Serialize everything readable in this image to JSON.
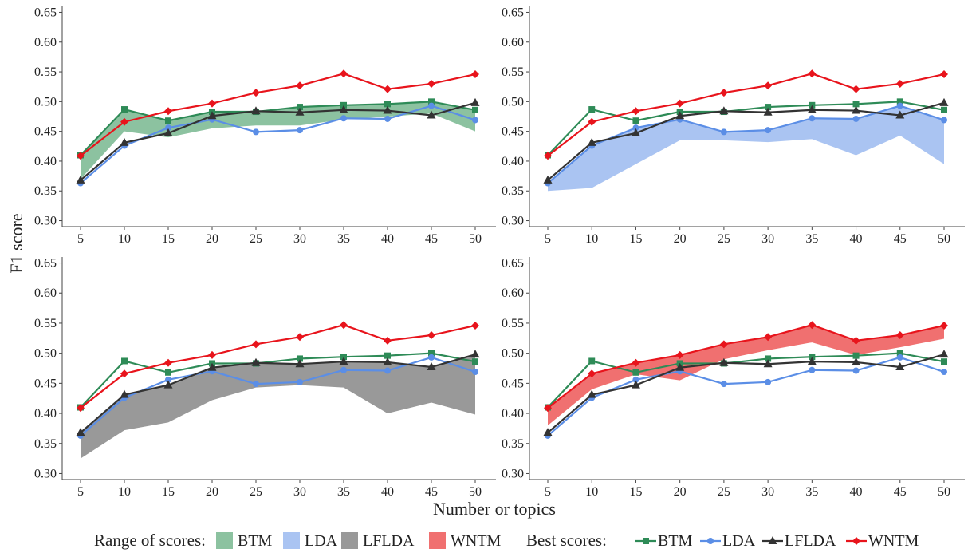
{
  "figure": {
    "ylabel": "F1 score",
    "xlabel": "Number or topics",
    "legend": {
      "range_title": "Range of scores:",
      "best_title": "Best scores:",
      "items": [
        "BTM",
        "LDA",
        "LFLDA",
        "WNTM"
      ]
    },
    "colors": {
      "BTM": "#2e8b57",
      "LDA": "#5b8ee6",
      "LFLDA": "#333333",
      "WNTM": "#e8141c",
      "BTM_band": "#8cc2a0",
      "LDA_band": "#aac4f2",
      "LFLDA_band": "#999999",
      "WNTM_band": "#f07070"
    },
    "markers": {
      "BTM": "square",
      "LDA": "circle",
      "LFLDA": "triangle",
      "WNTM": "diamond"
    }
  },
  "chart_data": [
    {
      "type": "line",
      "panel": "top-left",
      "band_series": "BTM",
      "x": [
        5,
        10,
        15,
        20,
        25,
        30,
        35,
        40,
        45,
        50
      ],
      "xticks": [
        "5",
        "10",
        "15",
        "20",
        "25",
        "30",
        "35",
        "40",
        "45",
        "50"
      ],
      "yticks": [
        "0.30",
        "0.35",
        "0.40",
        "0.45",
        "0.50",
        "0.55",
        "0.60",
        "0.65"
      ],
      "ylim": [
        0.29,
        0.66
      ],
      "band": {
        "upper": [
          0.41,
          0.487,
          0.468,
          0.483,
          0.483,
          0.491,
          0.494,
          0.496,
          0.5,
          0.486
        ],
        "lower": [
          0.37,
          0.45,
          0.44,
          0.455,
          0.46,
          0.46,
          0.47,
          0.475,
          0.48,
          0.45
        ]
      },
      "series": [
        {
          "name": "BTM",
          "values": [
            0.41,
            0.487,
            0.468,
            0.483,
            0.483,
            0.491,
            0.494,
            0.496,
            0.5,
            0.486
          ]
        },
        {
          "name": "LDA",
          "values": [
            0.363,
            0.426,
            0.456,
            0.47,
            0.449,
            0.452,
            0.472,
            0.471,
            0.493,
            0.469
          ]
        },
        {
          "name": "LFLDA",
          "values": [
            0.368,
            0.431,
            0.447,
            0.476,
            0.484,
            0.482,
            0.486,
            0.485,
            0.477,
            0.498
          ]
        },
        {
          "name": "WNTM",
          "values": [
            0.409,
            0.466,
            0.484,
            0.497,
            0.515,
            0.527,
            0.547,
            0.521,
            0.53,
            0.546
          ]
        }
      ]
    },
    {
      "type": "line",
      "panel": "top-right",
      "band_series": "LDA",
      "x": [
        5,
        10,
        15,
        20,
        25,
        30,
        35,
        40,
        45,
        50
      ],
      "xticks": [
        "5",
        "10",
        "15",
        "20",
        "25",
        "30",
        "35",
        "40",
        "45",
        "50"
      ],
      "yticks": [
        "0.30",
        "0.35",
        "0.40",
        "0.45",
        "0.50",
        "0.55",
        "0.60",
        "0.65"
      ],
      "ylim": [
        0.29,
        0.66
      ],
      "band": {
        "upper": [
          0.363,
          0.426,
          0.456,
          0.47,
          0.449,
          0.452,
          0.472,
          0.471,
          0.493,
          0.469
        ],
        "lower": [
          0.35,
          0.355,
          0.395,
          0.435,
          0.435,
          0.432,
          0.437,
          0.41,
          0.443,
          0.395
        ]
      },
      "series": [
        {
          "name": "BTM",
          "values": [
            0.41,
            0.487,
            0.468,
            0.483,
            0.483,
            0.491,
            0.494,
            0.496,
            0.5,
            0.486
          ]
        },
        {
          "name": "LDA",
          "values": [
            0.363,
            0.426,
            0.456,
            0.47,
            0.449,
            0.452,
            0.472,
            0.471,
            0.493,
            0.469
          ]
        },
        {
          "name": "LFLDA",
          "values": [
            0.368,
            0.431,
            0.447,
            0.476,
            0.484,
            0.482,
            0.486,
            0.485,
            0.477,
            0.498
          ]
        },
        {
          "name": "WNTM",
          "values": [
            0.409,
            0.466,
            0.484,
            0.497,
            0.515,
            0.527,
            0.547,
            0.521,
            0.53,
            0.546
          ]
        }
      ]
    },
    {
      "type": "line",
      "panel": "bottom-left",
      "band_series": "LFLDA",
      "x": [
        5,
        10,
        15,
        20,
        25,
        30,
        35,
        40,
        45,
        50
      ],
      "xticks": [
        "5",
        "10",
        "15",
        "20",
        "25",
        "30",
        "35",
        "40",
        "45",
        "50"
      ],
      "yticks": [
        "0.30",
        "0.35",
        "0.40",
        "0.45",
        "0.50",
        "0.55",
        "0.60",
        "0.65"
      ],
      "ylim": [
        0.29,
        0.66
      ],
      "band": {
        "upper": [
          0.368,
          0.431,
          0.447,
          0.476,
          0.484,
          0.482,
          0.486,
          0.485,
          0.477,
          0.498
        ],
        "lower": [
          0.325,
          0.372,
          0.385,
          0.422,
          0.443,
          0.447,
          0.443,
          0.4,
          0.418,
          0.398
        ]
      },
      "series": [
        {
          "name": "BTM",
          "values": [
            0.41,
            0.487,
            0.468,
            0.483,
            0.483,
            0.491,
            0.494,
            0.496,
            0.5,
            0.486
          ]
        },
        {
          "name": "LDA",
          "values": [
            0.363,
            0.426,
            0.456,
            0.47,
            0.449,
            0.452,
            0.472,
            0.471,
            0.493,
            0.469
          ]
        },
        {
          "name": "LFLDA",
          "values": [
            0.368,
            0.431,
            0.447,
            0.476,
            0.484,
            0.482,
            0.486,
            0.485,
            0.477,
            0.498
          ]
        },
        {
          "name": "WNTM",
          "values": [
            0.409,
            0.466,
            0.484,
            0.497,
            0.515,
            0.527,
            0.547,
            0.521,
            0.53,
            0.546
          ]
        }
      ]
    },
    {
      "type": "line",
      "panel": "bottom-right",
      "band_series": "WNTM",
      "x": [
        5,
        10,
        15,
        20,
        25,
        30,
        35,
        40,
        45,
        50
      ],
      "xticks": [
        "5",
        "10",
        "15",
        "20",
        "25",
        "30",
        "35",
        "40",
        "45",
        "50"
      ],
      "yticks": [
        "0.30",
        "0.35",
        "0.40",
        "0.45",
        "0.50",
        "0.55",
        "0.60",
        "0.65"
      ],
      "ylim": [
        0.29,
        0.66
      ],
      "band": {
        "upper": [
          0.409,
          0.466,
          0.484,
          0.497,
          0.515,
          0.527,
          0.547,
          0.521,
          0.53,
          0.546
        ],
        "lower": [
          0.38,
          0.44,
          0.465,
          0.455,
          0.49,
          0.505,
          0.518,
          0.497,
          0.51,
          0.524
        ]
      },
      "series": [
        {
          "name": "BTM",
          "values": [
            0.41,
            0.487,
            0.468,
            0.483,
            0.483,
            0.491,
            0.494,
            0.496,
            0.5,
            0.486
          ]
        },
        {
          "name": "LDA",
          "values": [
            0.363,
            0.426,
            0.456,
            0.47,
            0.449,
            0.452,
            0.472,
            0.471,
            0.493,
            0.469
          ]
        },
        {
          "name": "LFLDA",
          "values": [
            0.368,
            0.431,
            0.447,
            0.476,
            0.484,
            0.482,
            0.486,
            0.485,
            0.477,
            0.498
          ]
        },
        {
          "name": "WNTM",
          "values": [
            0.409,
            0.466,
            0.484,
            0.497,
            0.515,
            0.527,
            0.547,
            0.521,
            0.53,
            0.546
          ]
        }
      ]
    }
  ]
}
